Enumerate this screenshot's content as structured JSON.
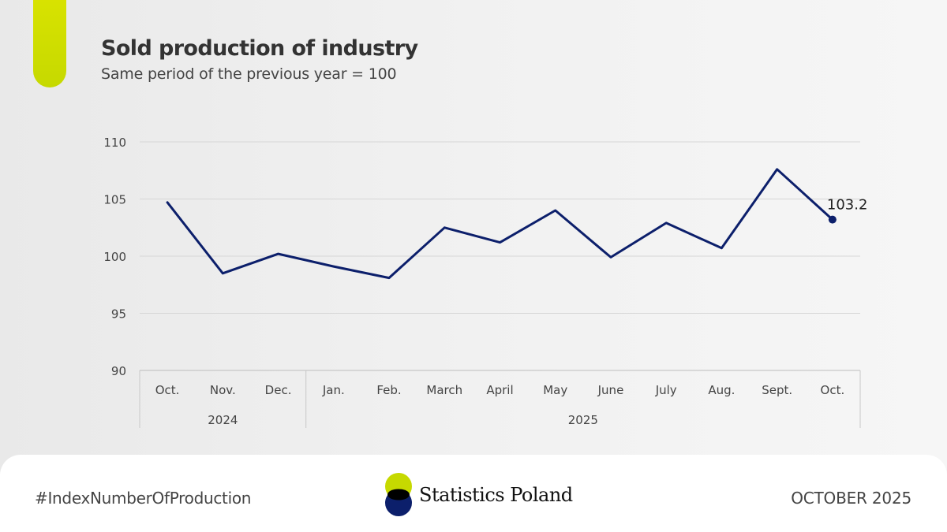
{
  "header": {
    "title": "Sold production of industry",
    "subtitle": "Same period of the previous year = 100"
  },
  "chart_data": {
    "type": "line",
    "title": "Sold production of industry",
    "subtitle": "Same period of the previous year = 100",
    "categories": [
      "Oct.",
      "Nov.",
      "Dec.",
      "Jan.",
      "Feb.",
      "March",
      "April",
      "May",
      "June",
      "July",
      "Aug.",
      "Sept.",
      "Oct."
    ],
    "year_groups": [
      {
        "label": "2024",
        "count": 3
      },
      {
        "label": "2025",
        "count": 10
      }
    ],
    "series": [
      {
        "name": "Sold production of industry",
        "values": [
          104.7,
          98.5,
          100.2,
          99.1,
          98.1,
          102.5,
          101.2,
          104.0,
          99.9,
          102.9,
          100.7,
          107.6,
          103.2
        ]
      }
    ],
    "ylim": [
      90,
      110
    ],
    "yticks": [
      90,
      95,
      100,
      105,
      110
    ],
    "last_label": "103.2",
    "grid": true,
    "line_color": "#0c1f6b"
  },
  "footer": {
    "hashtag": "#IndexNumberOfProduction",
    "brand": "Statistics Poland",
    "date": "OCTOBER 2025"
  },
  "colors": {
    "accent": "#c8dc00",
    "navy": "#0c1f6b"
  }
}
